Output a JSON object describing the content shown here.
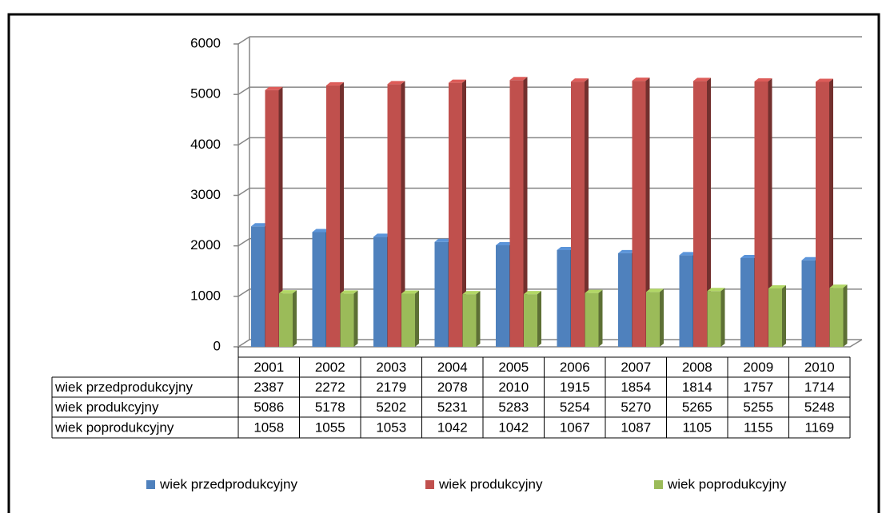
{
  "chart_data": {
    "type": "bar",
    "categories": [
      "2001",
      "2002",
      "2003",
      "2004",
      "2005",
      "2006",
      "2007",
      "2008",
      "2009",
      "2010"
    ],
    "series": [
      {
        "name": "wiek przedprodukcyjny",
        "color": "#4f81bd",
        "values": [
          2387,
          2272,
          2179,
          2078,
          2010,
          1915,
          1854,
          1814,
          1757,
          1714
        ]
      },
      {
        "name": "wiek produkcyjny",
        "color": "#c0504d",
        "values": [
          5086,
          5178,
          5202,
          5231,
          5283,
          5254,
          5270,
          5265,
          5255,
          5248
        ]
      },
      {
        "name": "wiek poprodukcyjny",
        "color": "#9bbb59",
        "values": [
          1058,
          1055,
          1053,
          1042,
          1042,
          1067,
          1087,
          1105,
          1155,
          1169
        ]
      }
    ],
    "ylim": [
      0,
      6000
    ],
    "yticks": [
      0,
      1000,
      2000,
      3000,
      4000,
      5000,
      6000
    ],
    "grid": true,
    "legend": "bottom"
  }
}
